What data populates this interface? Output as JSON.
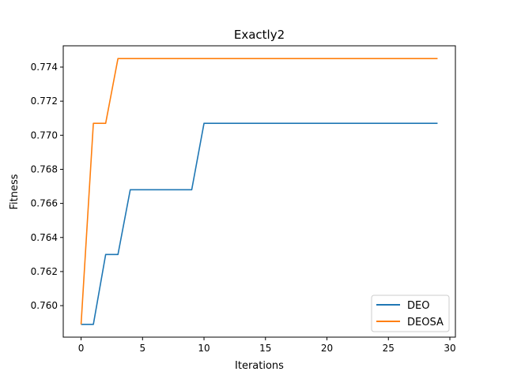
{
  "chart_data": {
    "type": "line",
    "title": "Exactly2",
    "xlabel": "Iterations",
    "ylabel": "Fitness",
    "xlim": [
      -1.45,
      30.45
    ],
    "ylim": [
      0.75815,
      0.77525
    ],
    "xticks": [
      0,
      5,
      10,
      15,
      20,
      25,
      30
    ],
    "xtick_labels": [
      "0",
      "5",
      "10",
      "15",
      "20",
      "25",
      "30"
    ],
    "yticks": [
      0.76,
      0.762,
      0.764,
      0.766,
      0.768,
      0.77,
      0.772,
      0.774
    ],
    "ytick_labels": [
      "0.760",
      "0.762",
      "0.764",
      "0.766",
      "0.768",
      "0.770",
      "0.772",
      "0.774"
    ],
    "grid": false,
    "legend_position": "lower-right",
    "series": [
      {
        "name": "DEO",
        "color": "#1f77b4",
        "x": [
          0,
          1,
          2,
          3,
          4,
          5,
          6,
          7,
          8,
          9,
          10,
          11,
          12,
          13,
          14,
          15,
          16,
          17,
          18,
          19,
          20,
          21,
          22,
          23,
          24,
          25,
          26,
          27,
          28,
          29
        ],
        "y": [
          0.7589,
          0.7589,
          0.763,
          0.763,
          0.7668,
          0.7668,
          0.7668,
          0.7668,
          0.7668,
          0.7668,
          0.7707,
          0.7707,
          0.7707,
          0.7707,
          0.7707,
          0.7707,
          0.7707,
          0.7707,
          0.7707,
          0.7707,
          0.7707,
          0.7707,
          0.7707,
          0.7707,
          0.7707,
          0.7707,
          0.7707,
          0.7707,
          0.7707,
          0.7707
        ]
      },
      {
        "name": "DEOSA",
        "color": "#ff7f0e",
        "x": [
          0,
          1,
          2,
          3,
          4,
          5,
          6,
          7,
          8,
          9,
          10,
          11,
          12,
          13,
          14,
          15,
          16,
          17,
          18,
          19,
          20,
          21,
          22,
          23,
          24,
          25,
          26,
          27,
          28,
          29
        ],
        "y": [
          0.7589,
          0.7707,
          0.7707,
          0.7745,
          0.7745,
          0.7745,
          0.7745,
          0.7745,
          0.7745,
          0.7745,
          0.7745,
          0.7745,
          0.7745,
          0.7745,
          0.7745,
          0.7745,
          0.7745,
          0.7745,
          0.7745,
          0.7745,
          0.7745,
          0.7745,
          0.7745,
          0.7745,
          0.7745,
          0.7745,
          0.7745,
          0.7745,
          0.7745,
          0.7745
        ]
      }
    ]
  }
}
